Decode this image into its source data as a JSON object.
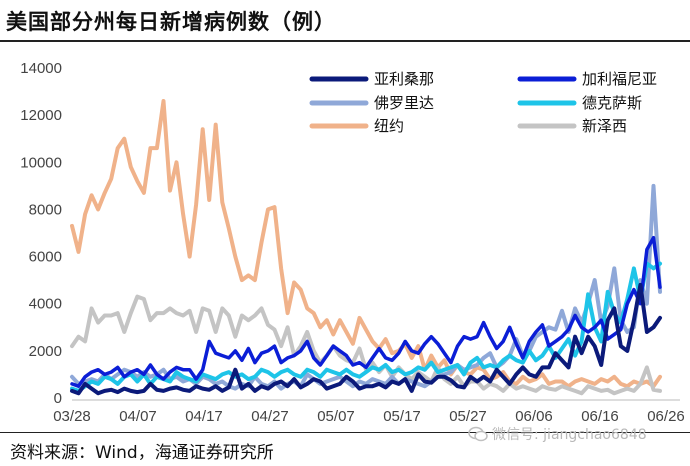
{
  "title": "美国部分州每日新增病例数（例）",
  "source": "资料来源：Wind，海通证券研究所",
  "watermark": "微信号: jiangchao6848",
  "chart_data": {
    "type": "line",
    "title": "美国部分州每日新增病例数（例）",
    "xlabel": "",
    "ylabel": "",
    "ylim": [
      0,
      14000
    ],
    "yticks": [
      0,
      2000,
      4000,
      6000,
      8000,
      10000,
      12000,
      14000
    ],
    "xlim": [
      0,
      90
    ],
    "xtick_labels": [
      "03/28",
      "04/07",
      "04/17",
      "04/27",
      "05/07",
      "05/17",
      "05/27",
      "06/06",
      "06/16",
      "06/26"
    ],
    "grid": false,
    "legend": "top-right",
    "series": [
      {
        "name": "亚利桑那",
        "color": "#0b1a7a",
        "width": 4,
        "values": [
          300,
          200,
          600,
          400,
          200,
          300,
          350,
          250,
          400,
          300,
          250,
          300,
          600,
          350,
          300,
          400,
          450,
          350,
          300,
          500,
          400,
          350,
          500,
          300,
          450,
          1200,
          400,
          600,
          300,
          500,
          400,
          600,
          700,
          500,
          800,
          450,
          600,
          800,
          700,
          400,
          500,
          600,
          900,
          700,
          400,
          500,
          500,
          600,
          450,
          700,
          600,
          800,
          300,
          1000,
          700,
          650,
          900,
          900,
          750,
          500,
          450,
          900,
          700,
          900,
          700,
          1200,
          900,
          600,
          1000,
          1300,
          1000,
          900,
          1300,
          1300,
          1900,
          1600,
          1300,
          2600,
          1900,
          2600,
          2200,
          1400,
          3300,
          3800,
          2200,
          2000,
          3300,
          4800,
          2800,
          3000,
          3400
        ]
      },
      {
        "name": "加利福尼亚",
        "color": "#0b1ed6",
        "width": 3.5,
        "values": [
          600,
          500,
          900,
          1100,
          1200,
          1000,
          1100,
          1300,
          900,
          1100,
          1200,
          1000,
          1400,
          1000,
          800,
          1100,
          1300,
          1200,
          1200,
          800,
          1200,
          2400,
          1900,
          1800,
          1700,
          2000,
          1600,
          2100,
          1500,
          1900,
          2000,
          2200,
          1500,
          1700,
          1800,
          2000,
          2400,
          1700,
          1400,
          1800,
          2200,
          2000,
          1800,
          1400,
          1500,
          1300,
          1700,
          2100,
          1700,
          1600,
          1900,
          2400,
          2000,
          1900,
          2300,
          2600,
          2300,
          1900,
          1500,
          2200,
          2600,
          2500,
          2600,
          3200,
          2600,
          2100,
          2400,
          3000,
          2300,
          1700,
          2400,
          2800,
          3100,
          2200,
          2400,
          2600,
          2900,
          3500,
          3000,
          2800,
          3000,
          3300,
          2500,
          2700,
          2900,
          4000,
          4600,
          4000,
          6300,
          6800,
          4700
        ]
      },
      {
        "name": "佛罗里达",
        "color": "#8fa8d8",
        "width": 4,
        "values": [
          900,
          600,
          700,
          800,
          700,
          1000,
          800,
          1000,
          1200,
          1100,
          900,
          1100,
          900,
          1000,
          1200,
          800,
          900,
          700,
          800,
          600,
          900,
          800,
          600,
          700,
          500,
          400,
          600,
          500,
          900,
          600,
          500,
          700,
          400,
          600,
          700,
          500,
          1000,
          800,
          600,
          700,
          800,
          900,
          700,
          500,
          700,
          600,
          800,
          700,
          600,
          900,
          600,
          800,
          700,
          600,
          500,
          700,
          900,
          1000,
          1100,
          1400,
          1200,
          1300,
          1400,
          1700,
          1900,
          1300,
          1500,
          1800,
          2500,
          1800,
          2000,
          2600,
          2800,
          3000,
          2900,
          3700,
          2800,
          3800,
          3200,
          4000,
          5000,
          3200,
          3900,
          5500,
          3300,
          2800,
          3000,
          5000,
          4000,
          9000,
          4500
        ]
      },
      {
        "name": "德克萨斯",
        "color": "#1ec4e8",
        "width": 4,
        "values": [
          400,
          300,
          500,
          700,
          600,
          900,
          800,
          600,
          900,
          1000,
          700,
          1000,
          600,
          900,
          800,
          700,
          1100,
          900,
          800,
          700,
          1000,
          900,
          800,
          1000,
          1100,
          900,
          1000,
          800,
          900,
          1200,
          1100,
          900,
          1100,
          1200,
          1000,
          900,
          1200,
          1100,
          900,
          1200,
          1100,
          1000,
          1200,
          1000,
          900,
          1100,
          1300,
          1200,
          1400,
          1100,
          1200,
          1000,
          1100,
          1300,
          1200,
          1500,
          1100,
          1200,
          1300,
          1400,
          1000,
          1500,
          1700,
          1300,
          1400,
          1300,
          1600,
          1800,
          1600,
          1500,
          2000,
          1600,
          1800,
          2200,
          1700,
          2100,
          2500,
          1800,
          2400,
          4400,
          3000,
          2400,
          4500,
          3600,
          3200,
          4200,
          5500,
          4200,
          5700,
          5500,
          5700
        ]
      },
      {
        "name": "纽约",
        "color": "#f0b28a",
        "width": 4,
        "values": [
          7300,
          6200,
          7800,
          8600,
          8000,
          8700,
          9300,
          10600,
          11000,
          9800,
          9200,
          8700,
          10600,
          10600,
          12600,
          8800,
          10000,
          7800,
          6000,
          8200,
          11400,
          8400,
          11600,
          8300,
          7200,
          6000,
          5000,
          5200,
          5000,
          6600,
          8000,
          8100,
          5500,
          3600,
          4900,
          4600,
          3800,
          3600,
          3000,
          3300,
          2700,
          3300,
          2800,
          2300,
          3400,
          2900,
          2400,
          2100,
          2500,
          1900,
          2000,
          2300,
          1700,
          2200,
          1200,
          1800,
          1300,
          1600,
          1000,
          1400,
          1100,
          1000,
          1300,
          1200,
          800,
          900,
          1100,
          700,
          600,
          900,
          700,
          800,
          1000,
          600,
          700,
          700,
          500,
          700,
          800,
          700,
          600,
          800,
          700,
          900,
          600,
          500,
          700,
          600,
          700,
          500,
          900
        ]
      },
      {
        "name": "新泽西",
        "color": "#c4c4c4",
        "width": 4,
        "values": [
          2200,
          2600,
          2400,
          3800,
          3200,
          3500,
          3500,
          3600,
          2800,
          3600,
          4300,
          4200,
          3300,
          3600,
          3600,
          3800,
          3600,
          3500,
          3700,
          2800,
          3800,
          3700,
          2800,
          3800,
          3500,
          2600,
          3500,
          3300,
          3500,
          3800,
          3100,
          2900,
          2200,
          3000,
          1800,
          2200,
          2800,
          2000,
          1500,
          1800,
          2200,
          1800,
          1600,
          1500,
          2100,
          1200,
          1500,
          1100,
          1400,
          900,
          1300,
          1000,
          800,
          1100,
          900,
          700,
          1300,
          800,
          600,
          900,
          500,
          700,
          700,
          400,
          600,
          500,
          300,
          600,
          400,
          500,
          400,
          300,
          500,
          400,
          350,
          500,
          400,
          300,
          200,
          500,
          400,
          300,
          350,
          200,
          300,
          400,
          300,
          600,
          1300,
          350,
          300
        ]
      }
    ]
  }
}
